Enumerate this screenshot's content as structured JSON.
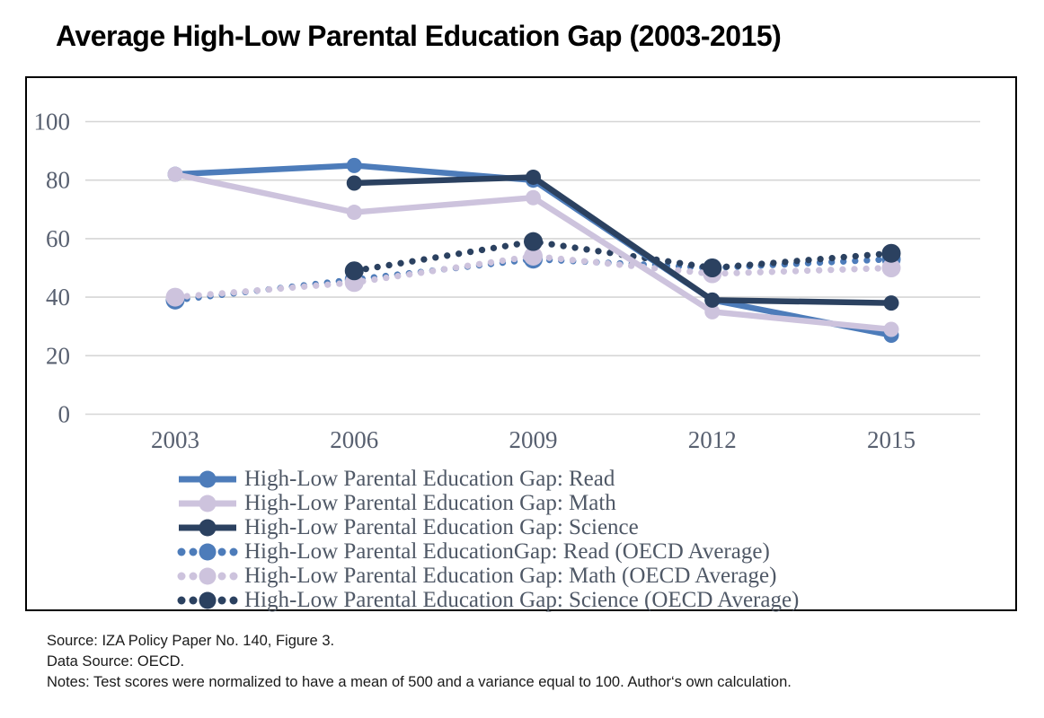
{
  "title": "Average High-Low Parental Education Gap (2003-2015)",
  "colors": {
    "read": "#4d7cba",
    "math": "#cdc3dd",
    "science": "#2b4160",
    "grid": "#d6d6d6",
    "axis_text": "#586070",
    "legend_text": "#4f5866",
    "frame_border": "#000000"
  },
  "chart_data": {
    "type": "line",
    "x": [
      2003,
      2006,
      2009,
      2012,
      2015
    ],
    "x_tick_labels": [
      "2003",
      "2006",
      "2009",
      "2012",
      "2015"
    ],
    "y_ticks": [
      0,
      20,
      40,
      60,
      80,
      100
    ],
    "ylim": [
      0,
      100
    ],
    "grid": "horizontal",
    "legend_position": "bottom",
    "series": [
      {
        "name": "read",
        "label": "High-Low Parental Education Gap: Read",
        "style": "solid",
        "color_key": "read",
        "values": [
          82,
          85,
          80,
          39,
          27
        ]
      },
      {
        "name": "math",
        "label": "High-Low Parental Education Gap: Math",
        "style": "solid",
        "color_key": "math",
        "values": [
          82,
          69,
          74,
          35,
          29
        ]
      },
      {
        "name": "science",
        "label": "High-Low Parental Education Gap: Science",
        "style": "solid",
        "color_key": "science",
        "values": [
          null,
          79,
          81,
          39,
          38
        ]
      },
      {
        "name": "read-oecd",
        "label": "High-Low Parental EducationGap: Read (OECD Average)",
        "style": "dotted",
        "color_key": "read",
        "values": [
          39,
          46,
          53,
          50,
          53
        ]
      },
      {
        "name": "math-oecd",
        "label": "High-Low Parental Education Gap: Math (OECD Average)",
        "style": "dotted",
        "color_key": "math",
        "values": [
          40,
          45,
          54,
          48,
          50
        ]
      },
      {
        "name": "science-oecd",
        "label": "High-Low Parental Education Gap: Science (OECD Average)",
        "style": "dotted",
        "color_key": "science",
        "values": [
          null,
          49,
          59,
          50,
          55
        ]
      }
    ]
  },
  "footer": {
    "source": "Source: IZA Policy Paper No. 140, Figure 3.",
    "data_source": "Data Source: OECD.",
    "notes": "Notes: Test scores were normalized to have a mean of 500 and a variance equal to 100. Author‘s own calculation."
  }
}
